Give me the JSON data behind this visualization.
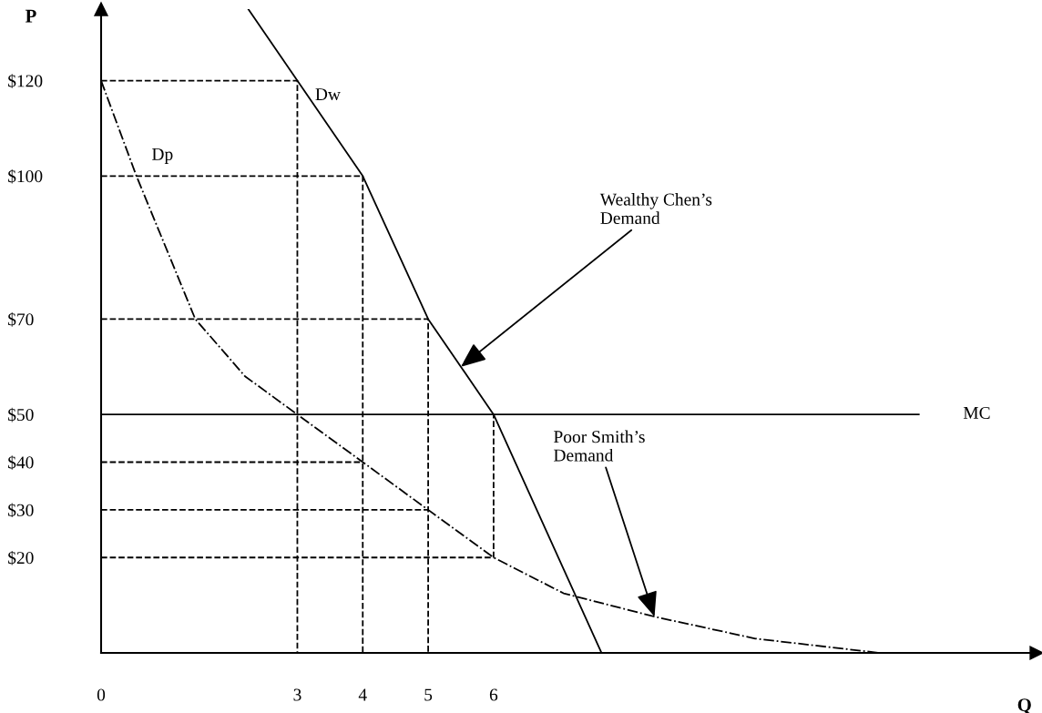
{
  "chart_data": {
    "type": "line",
    "xlabel": "Q",
    "ylabel": "P",
    "xlim": [
      0,
      14.3
    ],
    "ylim": [
      0,
      135
    ],
    "xticks": [
      0,
      3,
      4,
      5,
      6
    ],
    "yticks": [
      {
        "value": 20,
        "label": "$20"
      },
      {
        "value": 30,
        "label": "$30"
      },
      {
        "value": 40,
        "label": "$40"
      },
      {
        "value": 50,
        "label": "$50"
      },
      {
        "value": 70,
        "label": "$70"
      },
      {
        "value": 100,
        "label": "$100"
      },
      {
        "value": 120,
        "label": "$120"
      }
    ],
    "grid": false,
    "legend": false,
    "series": [
      {
        "name": "Dp",
        "color": "#000000",
        "line_style": "dashdot",
        "x": [
          0,
          0.54,
          1.44,
          2.2,
          3,
          4,
          5,
          6,
          7.07,
          8.46,
          10,
          11.9
        ],
        "values": [
          120,
          100,
          70,
          58,
          50,
          40,
          30,
          20,
          12.5,
          7.6,
          3,
          0
        ]
      },
      {
        "name": "Dw",
        "color": "#000000",
        "line_style": "solid",
        "x": [
          2.25,
          3,
          4,
          5,
          6,
          7.65
        ],
        "values": [
          135,
          120,
          100,
          70,
          50,
          0
        ]
      },
      {
        "name": "MC",
        "color": "#000000",
        "line_style": "solid",
        "x": [
          0,
          12.5
        ],
        "values": [
          50,
          50
        ]
      },
      {
        "color": "#000000",
        "line_style": "dashed",
        "x": [
          0,
          3,
          3
        ],
        "values": [
          120,
          120,
          0
        ]
      },
      {
        "color": "#000000",
        "line_style": "dashed",
        "x": [
          0,
          4,
          4
        ],
        "values": [
          100,
          100,
          0
        ]
      },
      {
        "color": "#000000",
        "line_style": "dashed",
        "x": [
          0,
          5,
          5
        ],
        "values": [
          70,
          70,
          0
        ]
      },
      {
        "color": "#000000",
        "line_style": "dashed",
        "x": [
          0,
          4
        ],
        "values": [
          40,
          40
        ]
      },
      {
        "color": "#000000",
        "line_style": "dashed",
        "x": [
          0,
          5
        ],
        "values": [
          30,
          30
        ]
      },
      {
        "color": "#000000",
        "line_style": "dashed",
        "x": [
          0,
          6,
          6
        ],
        "values": [
          20,
          20,
          50
        ]
      }
    ],
    "annotations": [
      {
        "text": "Wealthy Chen’s\nDemand",
        "x": 5.5,
        "y": 60
      },
      {
        "text": "Poor Smith’s\nDemand",
        "x": 8.46,
        "y": 7.6
      }
    ]
  }
}
